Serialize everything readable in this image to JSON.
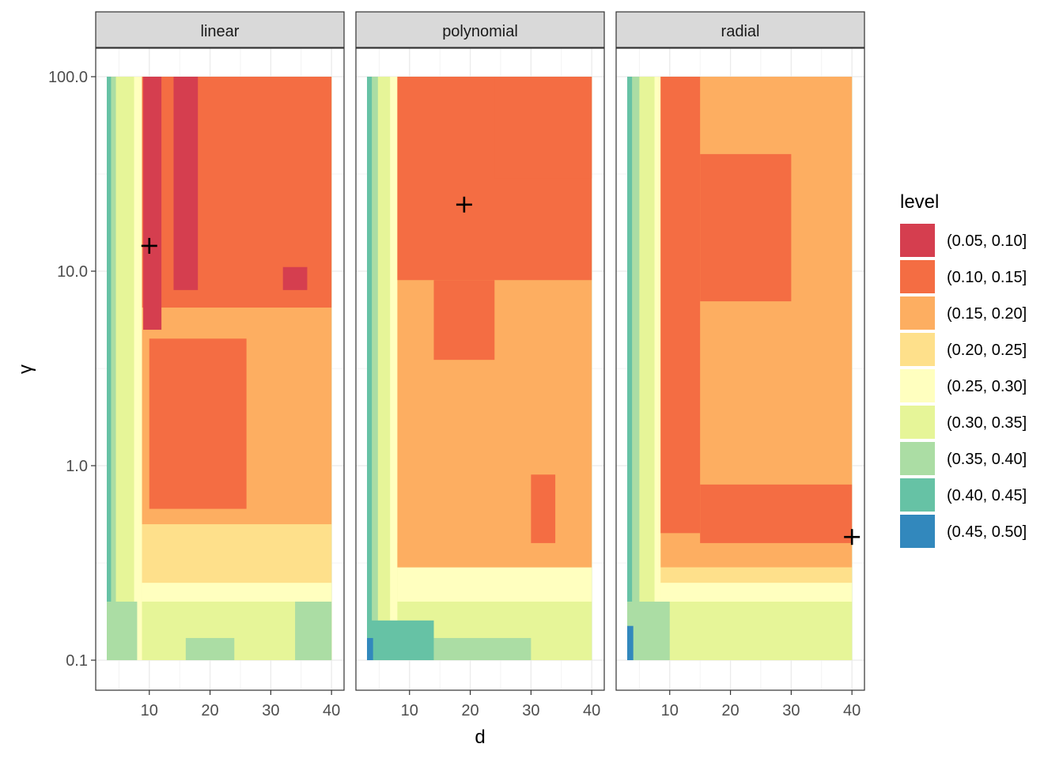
{
  "chart_data": {
    "type": "heatmap",
    "subtype": "filled-contour facets",
    "xlabel": "d",
    "ylabel": "γ",
    "x_range": [
      3,
      40
    ],
    "y_range_log10": [
      -1,
      2
    ],
    "x_ticks": [
      10,
      20,
      30,
      40
    ],
    "x_tick_labels": [
      "10",
      "20",
      "30",
      "40"
    ],
    "y_ticks": [
      0.1,
      1.0,
      10.0,
      100.0
    ],
    "y_tick_labels": [
      "0.1",
      "1.0",
      "10.0",
      "100.0"
    ],
    "legend": {
      "title": "level",
      "levels": [
        {
          "label": "(0.05, 0.10]",
          "color": "#D53E4F"
        },
        {
          "label": "(0.10, 0.15]",
          "color": "#F46D43"
        },
        {
          "label": "(0.15, 0.20]",
          "color": "#FDAE61"
        },
        {
          "label": "(0.20, 0.25]",
          "color": "#FEE08B"
        },
        {
          "label": "(0.25, 0.30]",
          "color": "#FFFFBF"
        },
        {
          "label": "(0.30, 0.35]",
          "color": "#E6F598"
        },
        {
          "label": "(0.35, 0.40]",
          "color": "#ABDDA4"
        },
        {
          "label": "(0.40, 0.45]",
          "color": "#66C2A5"
        },
        {
          "label": "(0.45, 0.50]",
          "color": "#3288BD"
        }
      ]
    },
    "panels": [
      {
        "name": "linear",
        "optimum": {
          "d": 10,
          "gamma": 13.5
        },
        "columns": [
          {
            "x": 3,
            "level": 7
          },
          {
            "x": 3.7,
            "level": 6
          },
          {
            "x": 4.5,
            "level": 5
          },
          {
            "x": 7.5,
            "level": 4
          },
          {
            "x": 8.8,
            "level": 3
          }
        ],
        "regions": [
          {
            "x0": 8.8,
            "x1": 40,
            "g0": 0.1,
            "g1": 0.25,
            "level": 5
          },
          {
            "x0": 8.8,
            "x1": 40,
            "g0": 0.2,
            "g1": 0.25,
            "level": 4
          },
          {
            "x0": 8.8,
            "x1": 40,
            "g0": 0.25,
            "g1": 0.5,
            "level": 3
          },
          {
            "x0": 8.8,
            "x1": 40,
            "g0": 0.5,
            "g1": 6.5,
            "level": 2
          },
          {
            "x0": 8.8,
            "x1": 40,
            "g0": 6.5,
            "g1": 100,
            "level": 1
          },
          {
            "x0": 10,
            "x1": 26,
            "g0": 0.6,
            "g1": 4.5,
            "level": 1
          },
          {
            "x0": 9,
            "x1": 12,
            "g0": 5,
            "g1": 100,
            "level": 0
          },
          {
            "x0": 14,
            "x1": 18,
            "g0": 8,
            "g1": 100,
            "level": 0
          },
          {
            "x0": 32,
            "x1": 36,
            "g0": 8,
            "g1": 10.5,
            "level": 0
          },
          {
            "x0": 3,
            "x1": 8,
            "g0": 0.1,
            "g1": 0.2,
            "level": 6
          },
          {
            "x0": 34,
            "x1": 40,
            "g0": 0.1,
            "g1": 0.2,
            "level": 6
          },
          {
            "x0": 16,
            "x1": 24,
            "g0": 0.1,
            "g1": 0.13,
            "level": 6
          }
        ]
      },
      {
        "name": "polynomial",
        "optimum": {
          "d": 19,
          "gamma": 22
        },
        "columns": [
          {
            "x": 3,
            "level": 7
          },
          {
            "x": 3.8,
            "level": 6
          },
          {
            "x": 4.8,
            "level": 5
          },
          {
            "x": 6.8,
            "level": 4
          }
        ],
        "regions": [
          {
            "x0": 8,
            "x1": 40,
            "g0": 0.1,
            "g1": 0.4,
            "level": 5
          },
          {
            "x0": 8,
            "x1": 40,
            "g0": 0.2,
            "g1": 0.3,
            "level": 4
          },
          {
            "x0": 8,
            "x1": 40,
            "g0": 0.3,
            "g1": 100,
            "level": 2
          },
          {
            "x0": 8,
            "x1": 40,
            "g0": 9,
            "g1": 100,
            "level": 1
          },
          {
            "x0": 14,
            "x1": 24,
            "g0": 3.5,
            "g1": 9,
            "level": 1
          },
          {
            "x0": 24,
            "x1": 40,
            "g0": 30,
            "g1": 100,
            "level": 1
          },
          {
            "x0": 30,
            "x1": 34,
            "g0": 0.4,
            "g1": 0.9,
            "level": 1
          },
          {
            "x0": 3,
            "x1": 14,
            "g0": 0.1,
            "g1": 0.16,
            "level": 7
          },
          {
            "x0": 14,
            "x1": 30,
            "g0": 0.1,
            "g1": 0.13,
            "level": 6
          },
          {
            "x0": 3,
            "x1": 4,
            "g0": 0.1,
            "g1": 0.13,
            "level": 8
          }
        ]
      },
      {
        "name": "radial",
        "optimum": {
          "d": 40,
          "gamma": 0.43
        },
        "columns": [
          {
            "x": 3,
            "level": 7
          },
          {
            "x": 3.8,
            "level": 6
          },
          {
            "x": 5,
            "level": 5
          },
          {
            "x": 7.5,
            "level": 4
          }
        ],
        "regions": [
          {
            "x0": 8.5,
            "x1": 40,
            "g0": 0.1,
            "g1": 0.2,
            "level": 5
          },
          {
            "x0": 8.5,
            "x1": 40,
            "g0": 0.2,
            "g1": 0.25,
            "level": 4
          },
          {
            "x0": 8.5,
            "x1": 40,
            "g0": 0.25,
            "g1": 0.3,
            "level": 3
          },
          {
            "x0": 8.5,
            "x1": 40,
            "g0": 0.3,
            "g1": 100,
            "level": 2
          },
          {
            "x0": 8.5,
            "x1": 15,
            "g0": 0.45,
            "g1": 100,
            "level": 1
          },
          {
            "x0": 15,
            "x1": 40,
            "g0": 0.4,
            "g1": 0.8,
            "level": 1
          },
          {
            "x0": 15,
            "x1": 30,
            "g0": 7,
            "g1": 40,
            "level": 1
          },
          {
            "x0": 3,
            "x1": 10,
            "g0": 0.1,
            "g1": 0.2,
            "level": 6
          },
          {
            "x0": 3,
            "x1": 4,
            "g0": 0.1,
            "g1": 0.15,
            "level": 8
          }
        ]
      }
    ]
  }
}
